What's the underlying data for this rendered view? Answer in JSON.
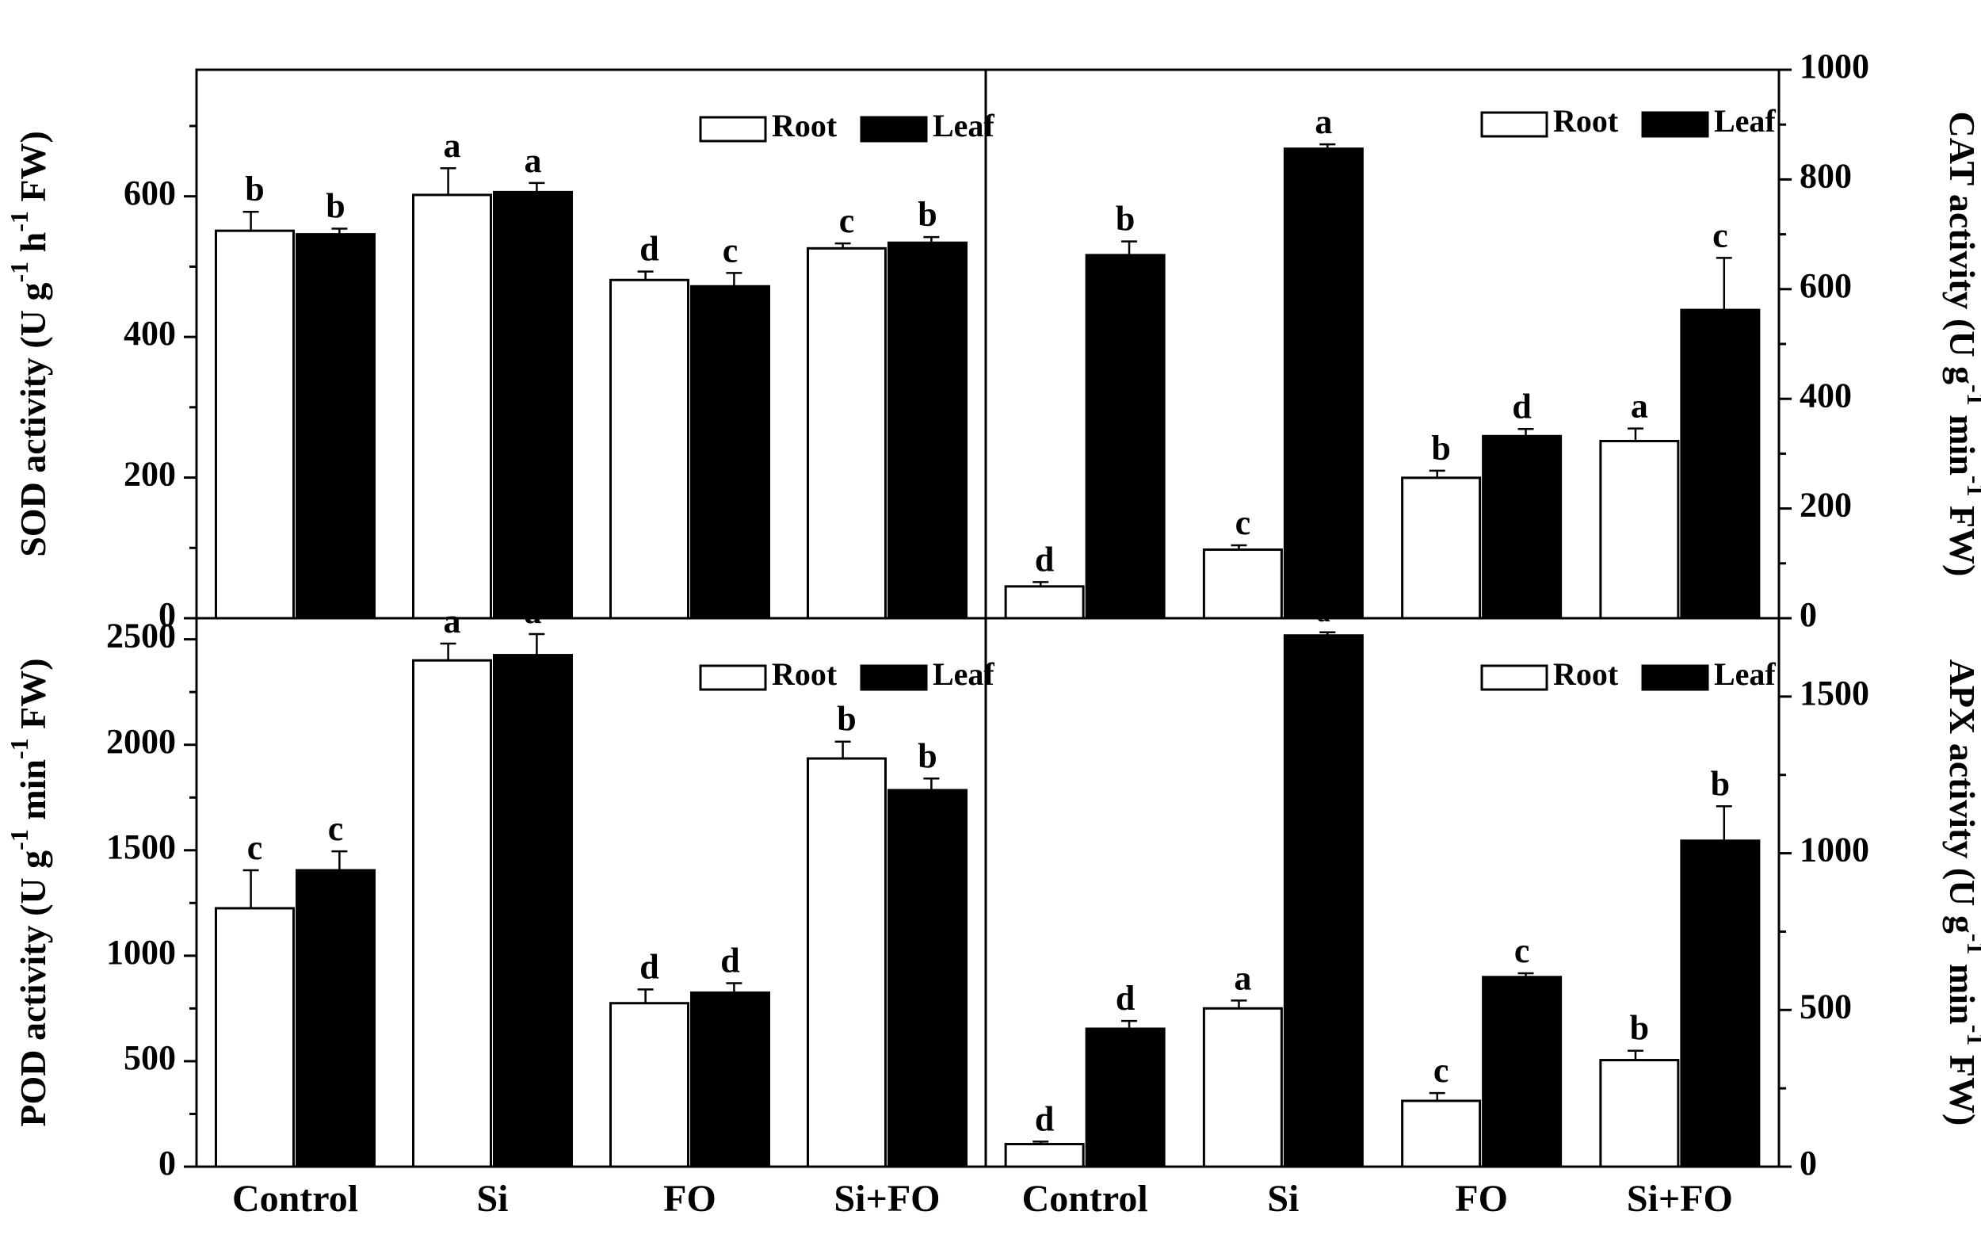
{
  "chart_data": [
    {
      "type": "bar",
      "panel": "top-left",
      "categories": [
        "Control",
        "Si",
        "FO",
        "Si+FO"
      ],
      "ylabel": "SOD activity (U g-1 h-1 FW)",
      "ylim": [
        0,
        780
      ],
      "yticks": [
        0,
        200,
        400,
        600
      ],
      "ytick_labels": [
        "0",
        "200",
        "400",
        "600"
      ],
      "minor_ytick": 100,
      "axis_side": "left",
      "legend": {
        "placement": "top-right",
        "labels": [
          "Root",
          "Leaf"
        ]
      },
      "series": [
        {
          "name": "Root",
          "color": "#ffffff",
          "values": [
            551,
            602,
            481,
            526
          ],
          "errors": [
            27,
            38,
            12,
            7
          ],
          "letters": [
            "b",
            "a",
            "d",
            "c"
          ]
        },
        {
          "name": "Leaf",
          "color": "#000000",
          "values": [
            546,
            606,
            472,
            534
          ],
          "errors": [
            8,
            13,
            19,
            8
          ],
          "letters": [
            "b",
            "a",
            "c",
            "b"
          ]
        }
      ]
    },
    {
      "type": "bar",
      "panel": "top-right",
      "categories": [
        "Control",
        "Si",
        "FO",
        "Si+FO"
      ],
      "ylabel": "CAT activity (U g-1 min-1 FW)",
      "ylim": [
        0,
        1000
      ],
      "yticks": [
        0,
        200,
        400,
        600,
        800,
        1000
      ],
      "ytick_labels": [
        "0",
        "200",
        "400",
        "600",
        "800",
        "1000"
      ],
      "minor_ytick": 100,
      "axis_side": "right",
      "legend": {
        "placement": "top-right",
        "labels": [
          "Root",
          "Leaf"
        ]
      },
      "series": [
        {
          "name": "Root",
          "color": "#ffffff",
          "values": [
            58,
            125,
            256,
            323
          ],
          "errors": [
            8,
            8,
            13,
            23
          ],
          "letters": [
            "d",
            "c",
            "b",
            "a"
          ]
        },
        {
          "name": "Leaf",
          "color": "#000000",
          "values": [
            662,
            856,
            332,
            562
          ],
          "errors": [
            25,
            8,
            13,
            95
          ],
          "letters": [
            "b",
            "a",
            "d",
            "c"
          ]
        }
      ]
    },
    {
      "type": "bar",
      "panel": "bottom-left",
      "categories": [
        "Control",
        "Si",
        "FO",
        "Si+FO"
      ],
      "ylabel": "POD activity (U g-1 min-1 FW)",
      "ylim": [
        0,
        2600
      ],
      "yticks": [
        0,
        500,
        1000,
        1500,
        2000,
        2500
      ],
      "ytick_labels": [
        "0",
        "500",
        "1000",
        "1500",
        "2000",
        "2500"
      ],
      "minor_ytick": 250,
      "axis_side": "left",
      "legend": {
        "placement": "top-right",
        "labels": [
          "Root",
          "Leaf"
        ]
      },
      "series": [
        {
          "name": "Root",
          "color": "#ffffff",
          "values": [
            1225,
            2400,
            775,
            1935
          ],
          "errors": [
            180,
            80,
            65,
            80
          ],
          "letters": [
            "c",
            "a",
            "d",
            "b"
          ]
        },
        {
          "name": "Leaf",
          "color": "#000000",
          "values": [
            1405,
            2425,
            825,
            1785
          ],
          "errors": [
            90,
            100,
            45,
            55
          ],
          "letters": [
            "c",
            "a",
            "d",
            "b"
          ]
        }
      ]
    },
    {
      "type": "bar",
      "panel": "bottom-right",
      "categories": [
        "Control",
        "Si",
        "FO",
        "Si+FO"
      ],
      "ylabel": "APX activity (U g-1 min-1 FW)",
      "ylim": [
        0,
        1750
      ],
      "yticks": [
        0,
        500,
        1000,
        1500
      ],
      "ytick_labels": [
        "0",
        "500",
        "1000",
        "1500"
      ],
      "minor_ytick": 250,
      "axis_side": "right",
      "legend": {
        "placement": "top-right",
        "labels": [
          "Root",
          "Leaf"
        ]
      },
      "series": [
        {
          "name": "Root",
          "color": "#ffffff",
          "values": [
            72,
            505,
            210,
            340
          ],
          "errors": [
            8,
            25,
            25,
            30
          ],
          "letters": [
            "d",
            "a",
            "c",
            "b"
          ]
        },
        {
          "name": "Leaf",
          "color": "#000000",
          "values": [
            440,
            1695,
            605,
            1040
          ],
          "errors": [
            25,
            10,
            12,
            110
          ],
          "letters": [
            "d",
            "a",
            "c",
            "b"
          ]
        }
      ]
    }
  ]
}
